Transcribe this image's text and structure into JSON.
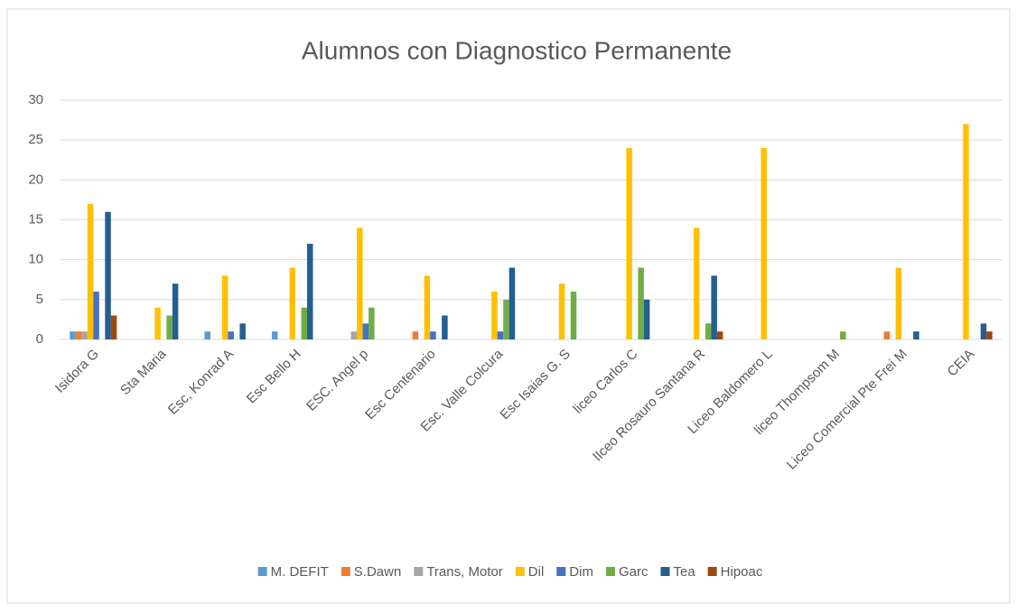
{
  "chart_data": {
    "type": "bar",
    "title": "Alumnos con Diagnostico Permanente",
    "categories": [
      "Isidora G",
      "Sta Maria",
      "Esc, Konrad A",
      "Esc Bello H",
      "ESC. Angel p",
      "Esc Centenario",
      "Esc. Valle Colcura",
      "Esc Isaias G. S",
      "liceo Carlos C",
      "lIceo Rosauro Santana R",
      "Liceo Baldomero L",
      "liceo Thompsom M",
      "Liceo Comercial Pte Frei M",
      "CEIA"
    ],
    "series": [
      {
        "name": "M. DEFIT",
        "color": "#5b9bd5",
        "values": [
          1,
          0,
          1,
          1,
          0,
          0,
          0,
          0,
          0,
          0,
          0,
          0,
          0,
          0
        ]
      },
      {
        "name": "S.Dawn",
        "color": "#ed7d31",
        "values": [
          1,
          0,
          0,
          0,
          0,
          1,
          0,
          0,
          0,
          0,
          0,
          0,
          1,
          0
        ]
      },
      {
        "name": "Trans, Motor",
        "color": "#a5a5a5",
        "values": [
          1,
          0,
          0,
          0,
          1,
          0,
          0,
          0,
          0,
          0,
          0,
          0,
          0,
          0
        ]
      },
      {
        "name": "Dil",
        "color": "#ffc000",
        "values": [
          17,
          4,
          8,
          9,
          14,
          8,
          6,
          7,
          24,
          14,
          24,
          0,
          9,
          27
        ]
      },
      {
        "name": "Dim",
        "color": "#4472c4",
        "values": [
          6,
          0,
          1,
          0,
          2,
          1,
          1,
          0,
          0,
          0,
          0,
          0,
          0,
          0
        ]
      },
      {
        "name": "Garc",
        "color": "#70ad47",
        "values": [
          0,
          3,
          0,
          4,
          4,
          0,
          5,
          6,
          9,
          2,
          0,
          1,
          0,
          0
        ]
      },
      {
        "name": "Tea",
        "color": "#255e91",
        "values": [
          16,
          7,
          2,
          12,
          0,
          3,
          9,
          0,
          5,
          8,
          0,
          0,
          1,
          2
        ]
      },
      {
        "name": "Hipoac",
        "color": "#9e480e",
        "values": [
          3,
          0,
          0,
          0,
          0,
          0,
          0,
          0,
          0,
          1,
          0,
          0,
          0,
          1
        ]
      }
    ],
    "ylim": [
      0,
      30
    ],
    "yticks": [
      0,
      5,
      10,
      15,
      20,
      25,
      30
    ],
    "grid": true,
    "legend": "bottom"
  }
}
